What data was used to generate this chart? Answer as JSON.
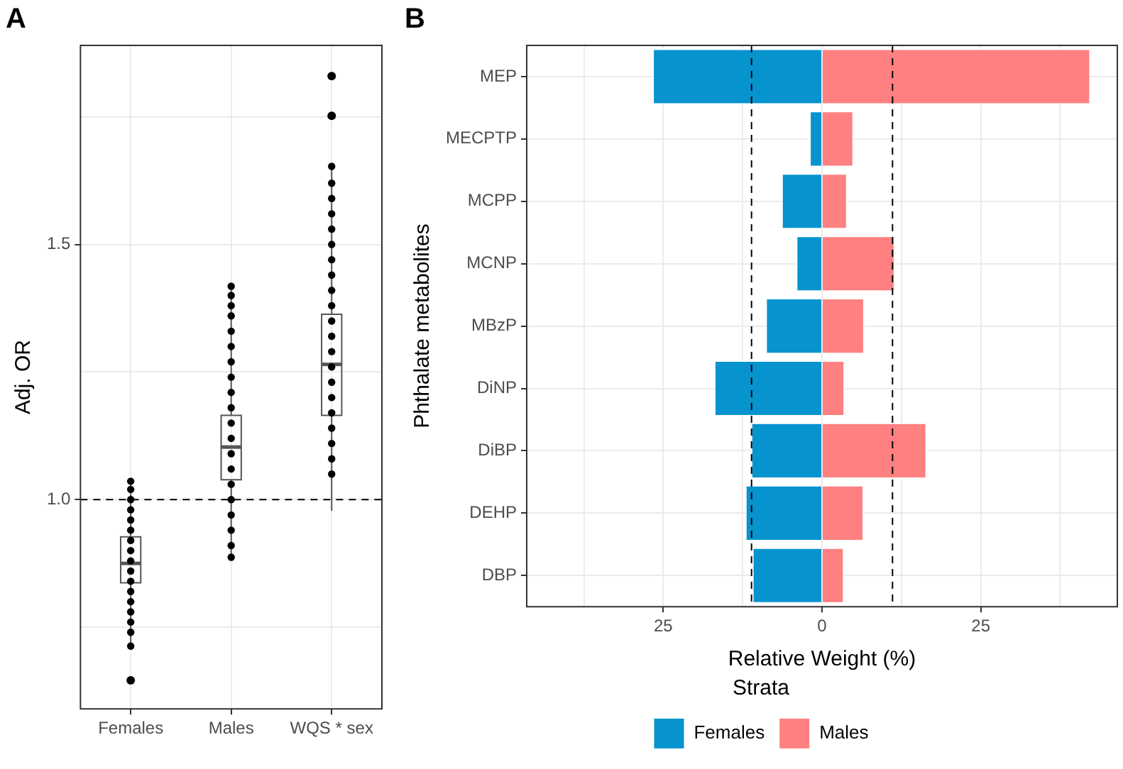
{
  "chart_data": [
    {
      "type": "box",
      "title": "A",
      "ylabel": "Adj. OR",
      "categories": [
        "Females",
        "Males",
        "WQS * sex"
      ],
      "boxes": [
        {
          "low": 0.713,
          "q1": 0.837,
          "median": 0.875,
          "q3": 0.927,
          "high": 1.036,
          "outliers": [
            0.646
          ]
        },
        {
          "low": 0.887,
          "q1": 1.039,
          "median": 1.103,
          "q3": 1.165,
          "high": 1.418
        },
        {
          "low": 0.978,
          "q1": 1.165,
          "median": 1.265,
          "q3": 1.363,
          "high": 1.653,
          "outliers": [
            1.752,
            1.83
          ]
        }
      ],
      "series": [
        {
          "type": "scatter",
          "color": "#000000",
          "x": [
            "Females",
            "Females",
            "Females",
            "Females",
            "Females",
            "Females",
            "Females",
            "Females",
            "Females",
            "Females",
            "Females",
            "Females",
            "Females",
            "Females",
            "Females",
            "Females",
            "Females",
            "Males",
            "Males",
            "Males",
            "Males",
            "Males",
            "Males",
            "Males",
            "Males",
            "Males",
            "Males",
            "Males",
            "Males",
            "Males",
            "Males",
            "Males",
            "Males",
            "Males",
            "Males",
            "Males",
            "Males",
            "WQS * sex",
            "WQS * sex",
            "WQS * sex",
            "WQS * sex",
            "WQS * sex",
            "WQS * sex",
            "WQS * sex",
            "WQS * sex",
            "WQS * sex",
            "WQS * sex",
            "WQS * sex",
            "WQS * sex",
            "WQS * sex",
            "WQS * sex",
            "WQS * sex",
            "WQS * sex",
            "WQS * sex",
            "WQS * sex",
            "WQS * sex",
            "WQS * sex",
            "WQS * sex"
          ],
          "values": [
            1.036,
            1.02,
            1.0,
            0.98,
            0.96,
            0.94,
            0.92,
            0.9,
            0.88,
            0.86,
            0.84,
            0.82,
            0.8,
            0.78,
            0.76,
            0.74,
            0.713,
            1.418,
            1.4,
            1.38,
            1.36,
            1.33,
            1.3,
            1.27,
            1.24,
            1.21,
            1.18,
            1.15,
            1.12,
            1.09,
            1.06,
            1.03,
            1.0,
            0.97,
            0.94,
            0.91,
            0.887,
            1.653,
            1.62,
            1.59,
            1.56,
            1.53,
            1.5,
            1.47,
            1.44,
            1.41,
            1.38,
            1.35,
            1.32,
            1.29,
            1.26,
            1.23,
            1.2,
            1.17,
            1.14,
            1.11,
            1.08,
            1.05
          ]
        }
      ],
      "marker": "circle",
      "ylim": [
        0.59,
        1.89
      ],
      "yticks": [
        {
          "value": 0.75,
          "label": null
        },
        {
          "value": 1,
          "label": "1.0"
        },
        {
          "value": 1.25,
          "label": null
        },
        1.5,
        {
          "value": 1.75,
          "label": null
        }
      ],
      "grid": true,
      "ref_lines": [
        {
          "axis": "y",
          "value": 1,
          "line_style": "dashed"
        }
      ]
    },
    {
      "type": "bar",
      "orientation": "horizontal",
      "stacked": true,
      "title": "B",
      "xlabel": "Relative Weight (%)",
      "ylabel": "Phthalate metabolites",
      "categories": [
        "MEP",
        "MECPTP",
        "MCPP",
        "MCNP",
        "MBzP",
        "DiNP",
        "DiBP",
        "DEHP",
        "DBP"
      ],
      "series": [
        {
          "name": "Females",
          "color": "#0693ce",
          "values": [
            -26.7,
            -2.0,
            -6.4,
            -4.1,
            -8.9,
            -17.0,
            -11.2,
            -12.1,
            -11.0
          ]
        },
        {
          "name": "Males",
          "color": "#ff8080",
          "values": [
            42.3,
            5.0,
            4.0,
            11.5,
            6.7,
            3.6,
            16.5,
            6.6,
            3.5
          ]
        }
      ],
      "xlim": [
        -46.5,
        46.5
      ],
      "xticks": [
        {
          "value": -37.5,
          "label": null
        },
        {
          "value": -25,
          "label": "25"
        },
        {
          "value": -12.5,
          "label": null
        },
        0,
        {
          "value": 12.5,
          "label": null
        },
        25,
        {
          "value": 37.5,
          "label": null
        }
      ],
      "grid": true,
      "legend": "bottom",
      "legend_title": "Strata",
      "ref_lines": [
        {
          "axis": "x",
          "value": -11.1,
          "line_style": "dashed"
        },
        {
          "axis": "x",
          "value": 11.1,
          "line_style": "dashed"
        }
      ]
    }
  ]
}
